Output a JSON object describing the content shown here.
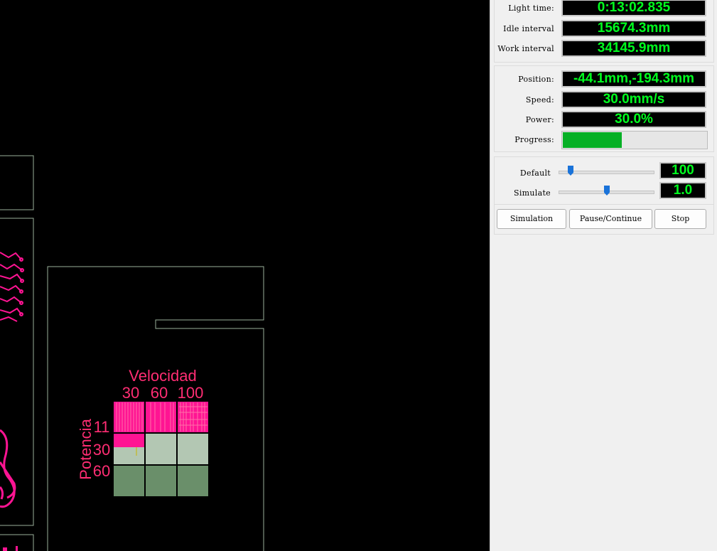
{
  "canvas": {
    "engraving_colors": {
      "text": "#ff2d73",
      "cut": "#ff1493",
      "outline": "#9ab09a"
    },
    "test_grid": {
      "title": "Velocidad",
      "speed_labels": [
        "30",
        "60",
        "100"
      ],
      "axis_label": "Potencia",
      "power_labels": [
        "11",
        "30",
        "60"
      ],
      "cell_colors": [
        "#ff1493",
        "#b3c7b3",
        "#6a8f6a"
      ]
    }
  },
  "panel": {
    "times": {
      "light_time_label": "Light time:",
      "light_time_value": "0:13:02.835",
      "idle_label": "Idle interval",
      "idle_value": "15674.3mm",
      "work_label": "Work interval",
      "work_value": "34145.9mm"
    },
    "status": {
      "position_label": "Position:",
      "position_value": "-44.1mm,-194.3mm",
      "speed_label": "Speed:",
      "speed_value": "30.0mm/s",
      "power_label": "Power:",
      "power_value": "30.0%",
      "progress_label": "Progress:",
      "progress_fraction": 0.41,
      "progress_color": "#06b025"
    },
    "sliders": {
      "default_label": "Default",
      "default_value": "100",
      "default_fraction": 0.1,
      "simulate_label": "Simulate",
      "simulate_value": "1.0",
      "simulate_fraction": 0.5
    },
    "buttons": {
      "simulation": "Simulation",
      "pause": "Pause/Continue",
      "stop": "Stop"
    },
    "value_color": "#00ff1e"
  }
}
